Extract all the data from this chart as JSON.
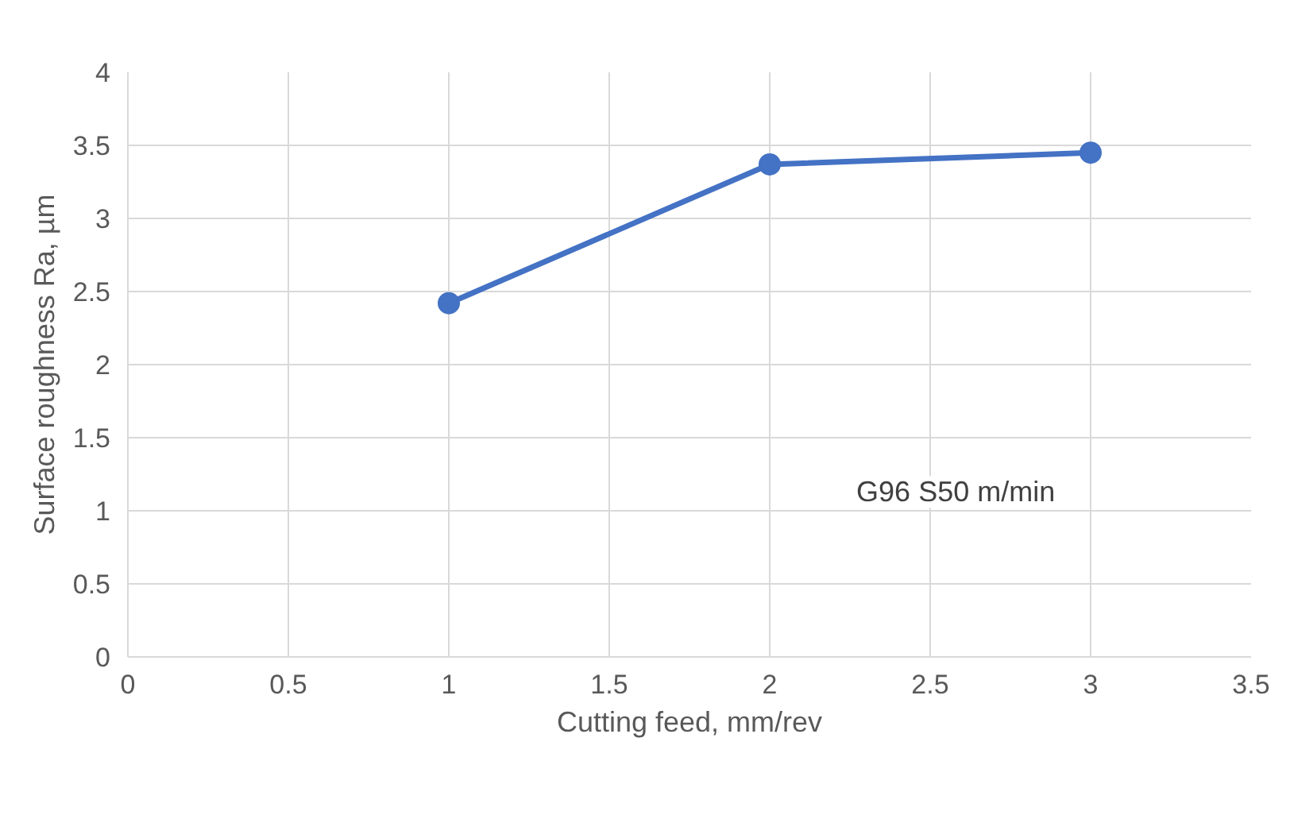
{
  "chart_data": {
    "type": "line",
    "xlabel": "Cutting feed, mm/rev",
    "ylabel": "Surface roughness Ra, µm",
    "x": [
      1,
      2,
      3
    ],
    "series": [
      {
        "color": "#4472c4",
        "values": [
          2.42,
          3.37,
          3.45
        ]
      }
    ],
    "xlim": [
      0,
      3.5
    ],
    "xticks": [
      0,
      0.5,
      1,
      1.5,
      2,
      2.5,
      3,
      3.5
    ],
    "ylim": [
      0,
      4
    ],
    "yticks": [
      0,
      0.5,
      1,
      1.5,
      2,
      2.5,
      3,
      3.5,
      4
    ],
    "grid": true,
    "marker": "circle",
    "line_style": "solid",
    "annotations": [
      "G96 S50 m/min"
    ]
  }
}
